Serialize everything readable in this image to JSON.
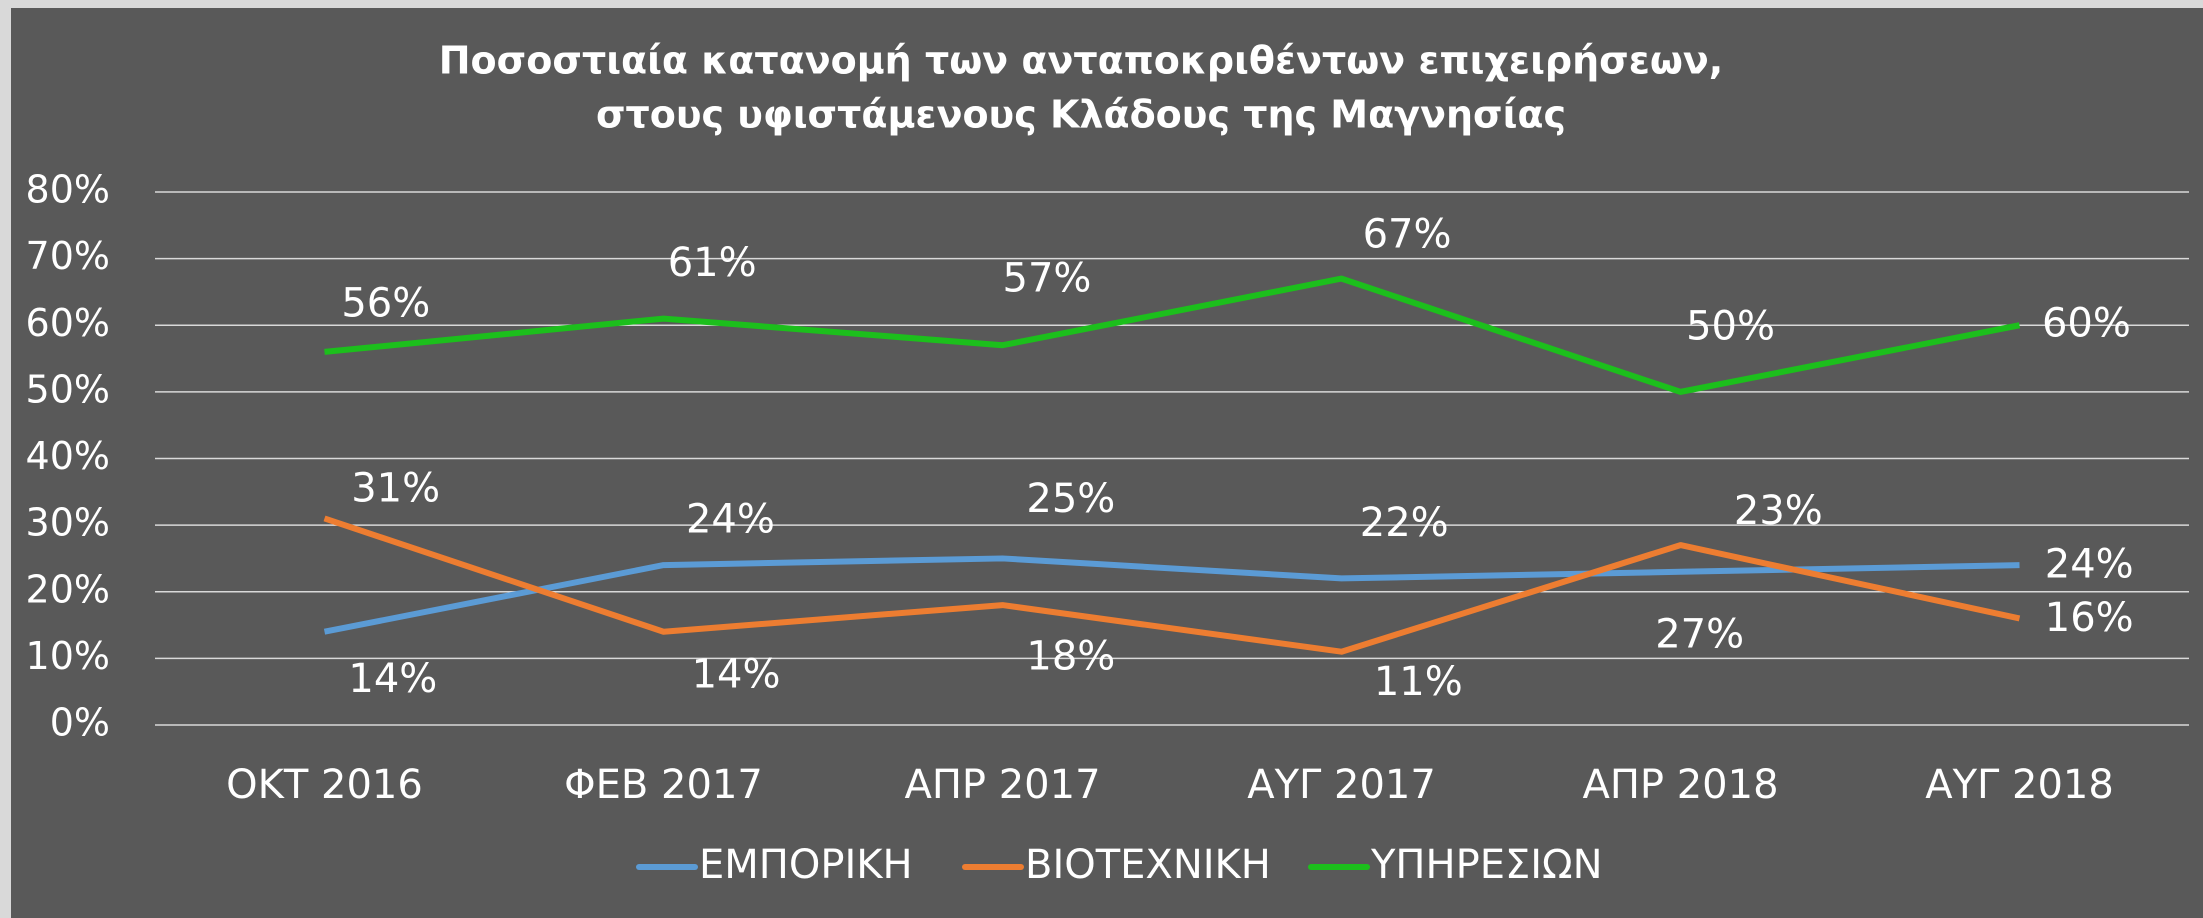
{
  "chart_data": {
    "type": "line",
    "title": [
      "Ποσοστιαία κατανομή των ανταποκριθέντων επιχειρήσεων,",
      "στους υφιστάμενους Κλάδους της Μαγνησίας"
    ],
    "categories": [
      "ΟΚΤ 2016",
      "ΦΕΒ 2017",
      "ΑΠΡ 2017",
      "ΑΥΓ 2017",
      "ΑΠΡ 2018",
      "ΑΥΓ 2018"
    ],
    "series": [
      {
        "name": "ΕΜΠΟΡΙΚΗ",
        "color": "#5b9bd5",
        "values": [
          14,
          24,
          25,
          22,
          23,
          24
        ],
        "value_labels": [
          "14%",
          "24%",
          "25%",
          "22%",
          "23%",
          "24%"
        ]
      },
      {
        "name": "ΒΙΟΤΕΧΝΙΚΗ",
        "color": "#ed7d31",
        "values": [
          31,
          14,
          18,
          11,
          27,
          16
        ],
        "value_labels": [
          "31%",
          "14%",
          "18%",
          "11%",
          "27%",
          "16%"
        ]
      },
      {
        "name": "ΥΠΗΡΕΣΙΩΝ",
        "color": "#1cbf1c",
        "values": [
          56,
          61,
          57,
          67,
          50,
          60
        ],
        "value_labels": [
          "56%",
          "61%",
          "57%",
          "67%",
          "50%",
          "60%"
        ]
      }
    ],
    "ylim": [
      0,
      80
    ],
    "yticks": [
      {
        "value": 0,
        "label": "0%"
      },
      {
        "value": 10,
        "label": "10%"
      },
      {
        "value": 20,
        "label": "20%"
      },
      {
        "value": 30,
        "label": "30%"
      },
      {
        "value": 40,
        "label": "40%"
      },
      {
        "value": 50,
        "label": "50%"
      },
      {
        "value": 60,
        "label": "60%"
      },
      {
        "value": 70,
        "label": "70%"
      },
      {
        "value": 80,
        "label": "80%"
      }
    ],
    "grid": true,
    "legend": "bottom"
  }
}
